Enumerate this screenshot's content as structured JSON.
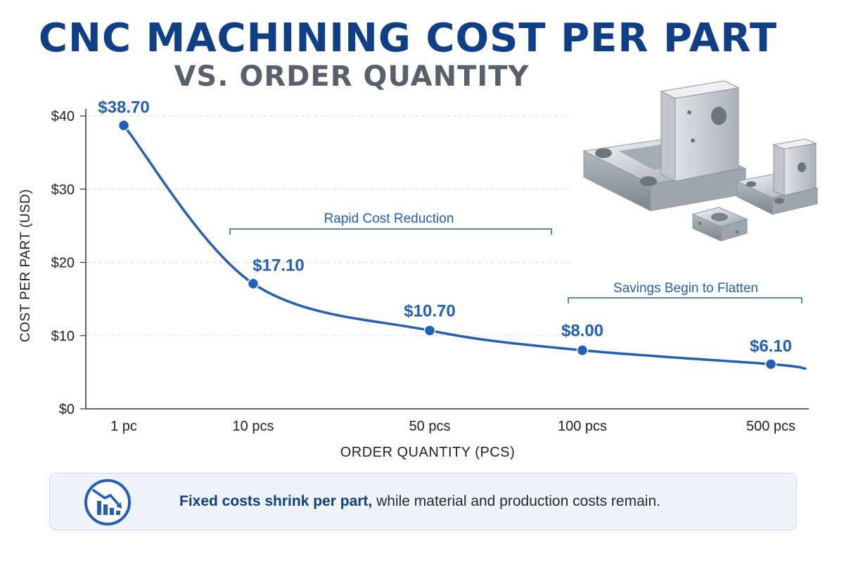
{
  "title": "CNC MACHINING COST PER PART",
  "subtitle": "VS. ORDER QUANTITY",
  "footer": {
    "bold_text": "Fixed costs shrink per part,",
    "text": " while material and production costs remain.",
    "icon": "downward-trend-chart-icon"
  },
  "colors": {
    "title": "#0f3f86",
    "subtitle": "#57606b",
    "line": "#1f5fbf",
    "label": "#1f5fbf",
    "annotation": "#1f5fbf"
  },
  "chart_data": {
    "type": "line",
    "title": "CNC MACHINING COST PER PART",
    "subtitle": "VS. ORDER QUANTITY",
    "xlabel": "ORDER QUANTITY (PCS)",
    "ylabel": "COST PER PART (USD)",
    "categories": [
      "1 pc",
      "10 pcs",
      "50 pcs",
      "100 pcs",
      "500 pcs"
    ],
    "values": [
      38.7,
      17.1,
      10.7,
      8.0,
      6.1
    ],
    "point_labels": [
      "$38.70",
      "$17.10",
      "$10.70",
      "$8.00",
      "$6.10"
    ],
    "ylim": [
      0,
      40
    ],
    "yticks": [
      0,
      10,
      20,
      30,
      40
    ],
    "ytick_labels": [
      "$0",
      "$10",
      "$20",
      "$30",
      "$40"
    ],
    "grid": true,
    "legend": "none",
    "annotations": [
      {
        "text": "Rapid Cost Reduction"
      },
      {
        "text": "Savings Begin to Flatten"
      }
    ]
  }
}
